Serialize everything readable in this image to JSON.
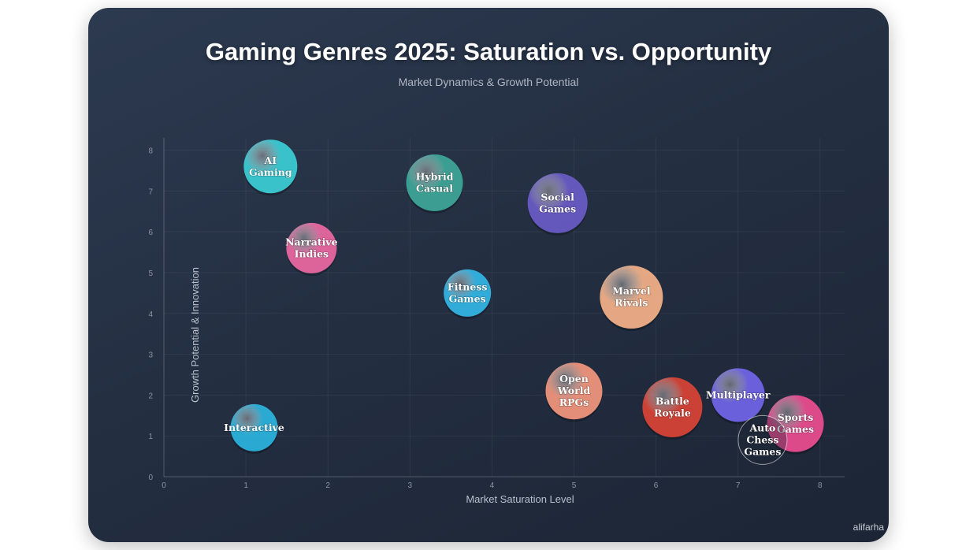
{
  "title": "Gaming Genres 2025: Saturation vs. Opportunity",
  "subtitle": "Market Dynamics & Growth Potential",
  "watermark": "alifarha",
  "chart_data": {
    "type": "scatter",
    "title": "Gaming Genres 2025: Saturation vs. Opportunity",
    "subtitle": "Market Dynamics & Growth Potential",
    "xlabel": "Market Saturation Level",
    "ylabel": "Growth Potential & Innovation",
    "xlim": [
      0,
      8.3
    ],
    "ylim": [
      0,
      8.3
    ],
    "xticks": [
      0,
      1,
      2,
      3,
      4,
      5,
      6,
      7,
      8
    ],
    "yticks": [
      0,
      1,
      2,
      3,
      4,
      5,
      6,
      7,
      8
    ],
    "grid": true,
    "legend": "none",
    "points": [
      {
        "label": [
          "AI",
          "Gaming"
        ],
        "x": 1.3,
        "y": 7.6,
        "size": 34,
        "color": "#3ccfd8"
      },
      {
        "label": [
          "Hybrid",
          "Casual"
        ],
        "x": 3.3,
        "y": 7.2,
        "size": 36,
        "color": "#3fa99b"
      },
      {
        "label": [
          "Social",
          "Games"
        ],
        "x": 4.8,
        "y": 6.7,
        "size": 38,
        "color": "#6a5cc8"
      },
      {
        "label": [
          "Narrative",
          "Indies"
        ],
        "x": 1.8,
        "y": 5.6,
        "size": 32,
        "color": "#ee6aa4"
      },
      {
        "label": [
          "Fitness",
          "Games"
        ],
        "x": 3.7,
        "y": 4.5,
        "size": 30,
        "color": "#33b8e8"
      },
      {
        "label": [
          "Marvel",
          "Rivals"
        ],
        "x": 5.7,
        "y": 4.4,
        "size": 40,
        "color": "#f7b38a"
      },
      {
        "label": [
          "Open",
          "World",
          "RPGs"
        ],
        "x": 5.0,
        "y": 2.1,
        "size": 36,
        "color": "#f5977e"
      },
      {
        "label": [
          "Battle",
          "Royale"
        ],
        "x": 6.2,
        "y": 1.7,
        "size": 38,
        "color": "#dc4436"
      },
      {
        "label": [
          "Multiplayer"
        ],
        "x": 7.0,
        "y": 2.0,
        "size": 34,
        "color": "#7266ea"
      },
      {
        "label": [
          "Sports",
          "Games"
        ],
        "x": 7.7,
        "y": 1.3,
        "size": 36,
        "color": "#ee4e92"
      },
      {
        "label": [
          "Auto",
          "Chess",
          "Games"
        ],
        "x": 7.3,
        "y": 0.9,
        "size": 31,
        "color": "none"
      },
      {
        "label": [
          "Interactive"
        ],
        "x": 1.1,
        "y": 1.2,
        "size": 30,
        "color": "#2cb6e0"
      }
    ]
  }
}
